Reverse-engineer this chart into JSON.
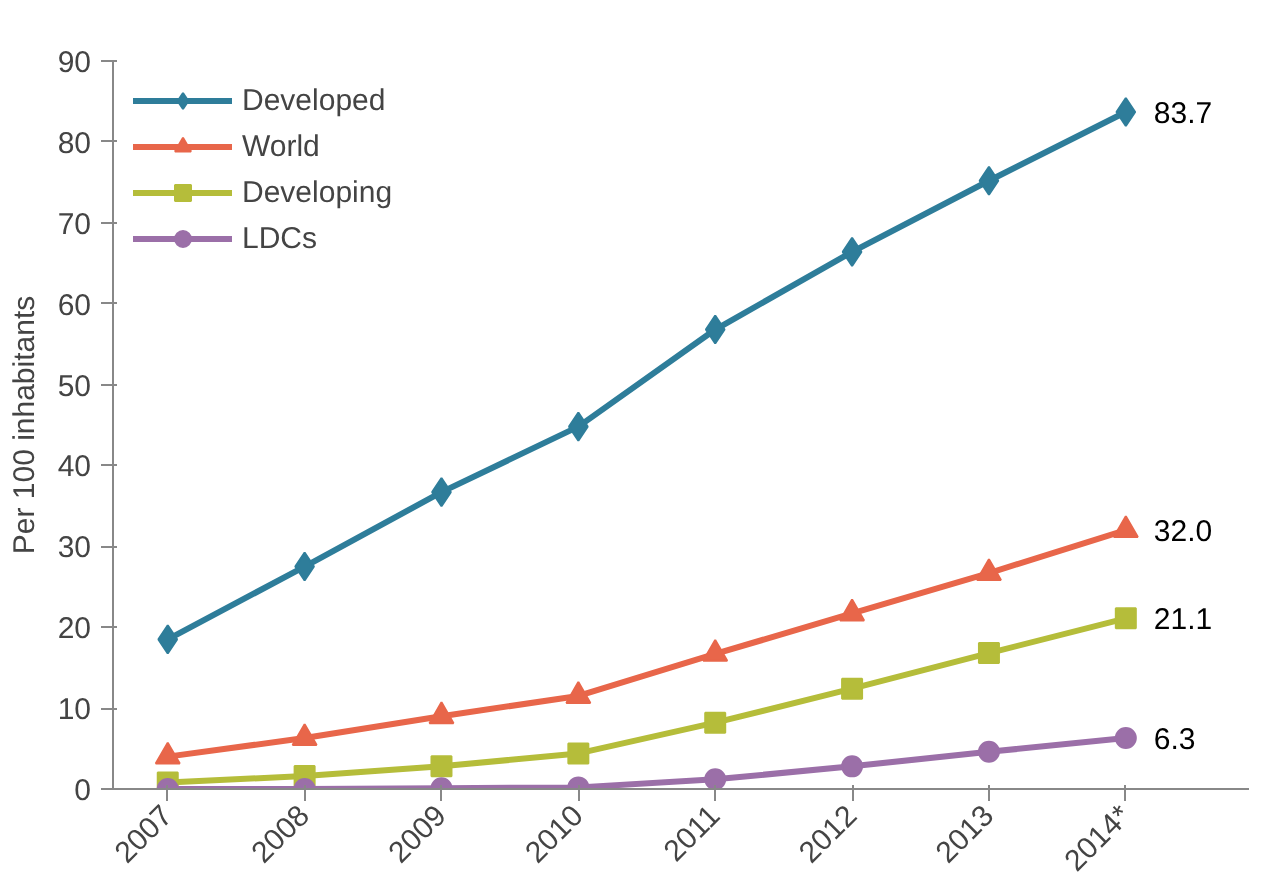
{
  "chart_data": {
    "type": "line",
    "ylabel": "Per 100 inhabitants",
    "categories": [
      "2007",
      "2008",
      "2009",
      "2010",
      "2011",
      "2012",
      "2013",
      "2014*"
    ],
    "ylim": [
      0,
      90
    ],
    "yticks": [
      0,
      10,
      20,
      30,
      40,
      50,
      60,
      70,
      80,
      90
    ],
    "grid": false,
    "legend": "top left",
    "line_style": "solid",
    "series": [
      {
        "name": "Developed",
        "color": "#2e7d9a",
        "marker": "diamond",
        "values": [
          18.5,
          27.5,
          36.7,
          44.8,
          56.8,
          66.4,
          75.2,
          83.7
        ],
        "value_labels": [
          null,
          null,
          null,
          null,
          null,
          null,
          null,
          "83.7"
        ]
      },
      {
        "name": "World",
        "color": "#e8664a",
        "marker": "triangle",
        "values": [
          4.0,
          6.3,
          9.0,
          11.5,
          16.7,
          21.7,
          26.7,
          32.0
        ],
        "value_labels": [
          null,
          null,
          null,
          null,
          null,
          null,
          null,
          "32.0"
        ]
      },
      {
        "name": "Developing",
        "color": "#b5bd3a",
        "marker": "square",
        "values": [
          0.8,
          1.6,
          2.8,
          4.4,
          8.2,
          12.4,
          16.8,
          21.1
        ],
        "value_labels": [
          null,
          null,
          null,
          null,
          null,
          null,
          null,
          "21.1"
        ]
      },
      {
        "name": "LDCs",
        "color": "#9b6fa8",
        "marker": "circle",
        "values": [
          0.0,
          0.0,
          0.1,
          0.2,
          1.2,
          2.8,
          4.6,
          6.3
        ],
        "value_labels": [
          null,
          null,
          null,
          null,
          null,
          null,
          null,
          "6.3"
        ]
      }
    ]
  }
}
